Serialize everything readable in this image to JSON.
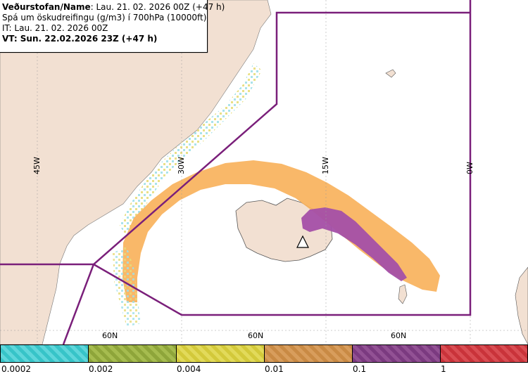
{
  "header": {
    "line1_prefix": "Veðurstofan/Name",
    "line1_rest": ": Lau. 21. 02. 2026 00Z (+47 h)",
    "line2": "Spá um öskudreifingu (g/m3) í 700hPa (10000ft)",
    "line3": "IT: Lau. 21. 02. 2026 00Z",
    "line4": "VT: Sun. 22.02.2026 23Z (+47 h)"
  },
  "map": {
    "longitude_labels": [
      "45W",
      "30W",
      "15W",
      "0W"
    ],
    "latitude_labels": [
      "60N",
      "60N",
      "60N"
    ],
    "volcano_icon": "volcano-triangle-icon",
    "colors": {
      "land": "#f2e0d2",
      "sea": "#ffffff",
      "boundary": "#7a1f7a",
      "plume_orange": "#f8b25c",
      "plume_purple": "#a44fa8",
      "plume_yellow": "#e6dc7a",
      "plume_cyan": "#9fe0e8"
    }
  },
  "legend": {
    "labels": [
      "0.0002",
      "0.002",
      "0.004",
      "0.01",
      "0.1",
      "1"
    ],
    "colors": [
      "#37c4c8",
      "#8ea53a",
      "#d3c93a",
      "#c98a44",
      "#7b3a80",
      "#c9333a"
    ]
  }
}
